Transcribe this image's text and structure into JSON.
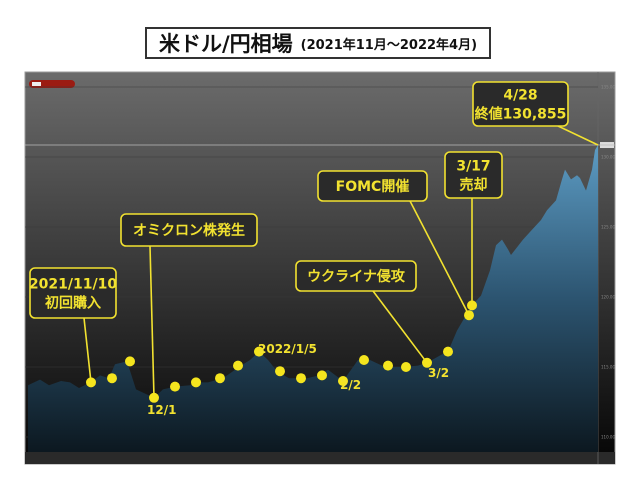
{
  "title": {
    "main": "米ドル/円相場",
    "sub": "(2021年11月〜2022年4月)"
  },
  "colors": {
    "annotation": "#f2e230",
    "area_top": "#5d9cc4",
    "area_bottom": "#0c1820",
    "panel_top": "#6b6b6b",
    "panel_bottom": "#050505",
    "tag": "#9b1b12"
  },
  "chart_data": {
    "type": "area",
    "title": "米ドル/円相場 (2021年11月〜2022年4月)",
    "x_range": [
      "2021-10-20",
      "2022-04-28"
    ],
    "ylim": [
      110,
      135
    ],
    "yticks": [
      "135.00",
      "130.00",
      "125.00",
      "120.00",
      "115.00",
      "110.00"
    ],
    "grid": true,
    "last_price_line": 130.855,
    "series": [
      {
        "values": [
          [
            "2021-10-20",
            113.7
          ],
          [
            "2021-10-24",
            114.1
          ],
          [
            "2021-10-27",
            113.7
          ],
          [
            "2021-10-31",
            114.0
          ],
          [
            "2021-11-03",
            113.9
          ],
          [
            "2021-11-06",
            113.5
          ],
          [
            "2021-11-10",
            113.9
          ],
          [
            "2021-11-13",
            114.4
          ],
          [
            "2021-11-16",
            114.2
          ],
          [
            "2021-11-18",
            115.2
          ],
          [
            "2021-11-22",
            115.4
          ],
          [
            "2021-11-25",
            113.4
          ],
          [
            "2021-12-01",
            112.8
          ],
          [
            "2021-12-04",
            113.4
          ],
          [
            "2021-12-08",
            113.6
          ],
          [
            "2021-12-13",
            113.7
          ],
          [
            "2021-12-16",
            113.9
          ],
          [
            "2021-12-19",
            113.9
          ],
          [
            "2021-12-24",
            114.2
          ],
          [
            "2021-12-30",
            115.1
          ],
          [
            "2022-01-02",
            115.5
          ],
          [
            "2022-01-05",
            116.1
          ],
          [
            "2022-01-08",
            115.5
          ],
          [
            "2022-01-11",
            114.7
          ],
          [
            "2022-01-15",
            114.2
          ],
          [
            "2022-01-18",
            114.2
          ],
          [
            "2022-01-21",
            114.2
          ],
          [
            "2022-01-25",
            114.4
          ],
          [
            "2022-01-28",
            114.8
          ],
          [
            "2022-02-02",
            114.0
          ],
          [
            "2022-02-04",
            114.6
          ],
          [
            "2022-02-07",
            115.5
          ],
          [
            "2022-02-10",
            115.6
          ],
          [
            "2022-02-16",
            115.0
          ],
          [
            "2022-02-22",
            115.0
          ],
          [
            "2022-02-27",
            115.1
          ],
          [
            "2022-03-02",
            115.3
          ],
          [
            "2022-03-07",
            115.9
          ],
          [
            "2022-03-09",
            116.1
          ],
          [
            "2022-03-12",
            117.6
          ],
          [
            "2022-03-15",
            118.7
          ],
          [
            "2022-03-17",
            119.4
          ],
          [
            "2022-03-20",
            120.1
          ],
          [
            "2022-03-23",
            121.9
          ],
          [
            "2022-03-25",
            123.7
          ],
          [
            "2022-03-27",
            124.1
          ],
          [
            "2022-03-29",
            123.4
          ],
          [
            "2022-03-30",
            123.0
          ],
          [
            "2022-04-03",
            124.1
          ],
          [
            "2022-04-06",
            124.8
          ],
          [
            "2022-04-09",
            125.5
          ],
          [
            "2022-04-11",
            126.2
          ],
          [
            "2022-04-14",
            126.9
          ],
          [
            "2022-04-16",
            128.4
          ],
          [
            "2022-04-17",
            129.1
          ],
          [
            "2022-04-19",
            128.4
          ],
          [
            "2022-04-21",
            128.7
          ],
          [
            "2022-04-22",
            128.5
          ],
          [
            "2022-04-24",
            127.6
          ],
          [
            "2022-04-26",
            129.1
          ],
          [
            "2022-04-27",
            130.5
          ],
          [
            "2022-04-28",
            130.855
          ]
        ]
      }
    ],
    "markers": [
      [
        "2021-11-10",
        113.9
      ],
      [
        "2021-11-17",
        114.2
      ],
      [
        "2021-11-23",
        115.4
      ],
      [
        "2021-12-01",
        112.8
      ],
      [
        "2021-12-08",
        113.6
      ],
      [
        "2021-12-15",
        113.9
      ],
      [
        "2021-12-23",
        114.2
      ],
      [
        "2021-12-29",
        115.1
      ],
      [
        "2022-01-05",
        116.1
      ],
      [
        "2022-01-12",
        114.7
      ],
      [
        "2022-01-19",
        114.2
      ],
      [
        "2022-01-26",
        114.4
      ],
      [
        "2022-02-02",
        114.0
      ],
      [
        "2022-02-09",
        115.5
      ],
      [
        "2022-02-17",
        115.1
      ],
      [
        "2022-02-23",
        115.0
      ],
      [
        "2022-03-02",
        115.3
      ],
      [
        "2022-03-09",
        116.1
      ],
      [
        "2022-03-16",
        118.7
      ],
      [
        "2022-03-17",
        119.4
      ]
    ],
    "annotations": [
      {
        "lines": [
          "2021/11/10",
          "初回購入"
        ],
        "target": 0
      },
      {
        "lines": [
          "オミクロン株発生"
        ],
        "target": 3
      },
      {
        "lines": [
          "ウクライナ侵攻"
        ],
        "target": 16
      },
      {
        "lines": [
          "FOMC開催"
        ],
        "target": 18
      },
      {
        "lines": [
          "3/17",
          "売却"
        ],
        "target": 19
      },
      {
        "lines": [
          "4/28",
          "終値130,855"
        ],
        "target": "last"
      }
    ],
    "labels": [
      "12/1",
      "2022/1/5",
      "2/2",
      "3/2"
    ]
  }
}
